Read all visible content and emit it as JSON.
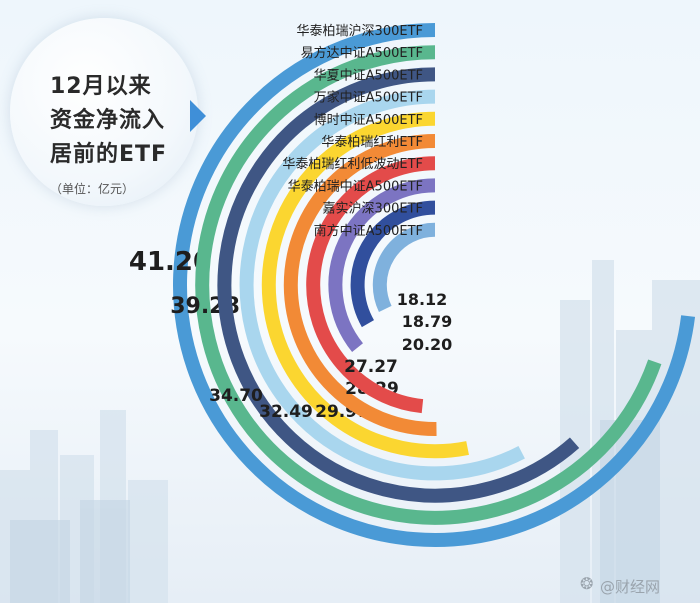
{
  "title": {
    "line1": "12月以来",
    "line2": "资金净流入",
    "line3": "居前的ETF",
    "unit": "（单位：亿元）"
  },
  "watermark": "@财经网",
  "chart_data": {
    "type": "bar",
    "title": "12月以来资金净流入居前的ETF",
    "unit": "亿元",
    "categories": [
      "华泰柏瑞沪深300ETF",
      "易方达中证A500ETF",
      "华夏中证A500ETF",
      "万家中证A500ETF",
      "博时中证A500ETF",
      "华泰柏瑞红利ETF",
      "华泰柏瑞红利低波动ETF",
      "华泰柏瑞中证A500ETF",
      "嘉实沪深300ETF",
      "南方中证A500ETF"
    ],
    "values": [
      41.2,
      39.28,
      34.7,
      32.49,
      29.97,
      28.29,
      27.27,
      20.2,
      18.79,
      18.12
    ],
    "value_labels": [
      "41.20",
      "39.28",
      "34.70",
      "32.49",
      "29.97",
      "28.29",
      "27.27",
      "20.20",
      "18.79",
      "18.12"
    ],
    "colors": [
      "#4a9ad6",
      "#59b78e",
      "#3f5684",
      "#a9d6ee",
      "#fbd630",
      "#f28a36",
      "#e34b4a",
      "#7c74c2",
      "#314f9d",
      "#7fb1dd"
    ]
  }
}
